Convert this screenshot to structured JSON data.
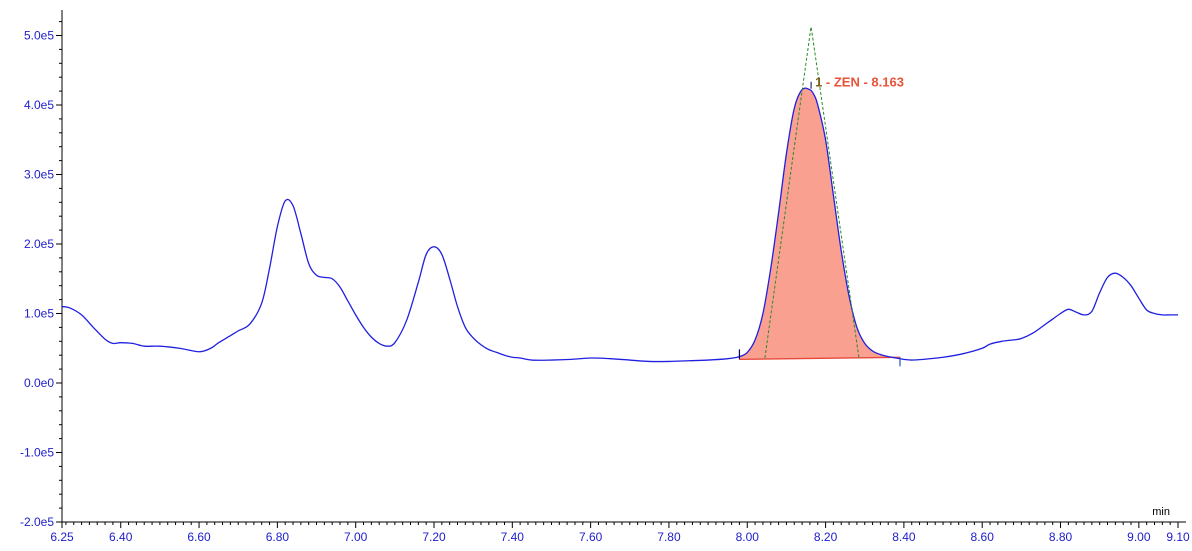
{
  "chart_data": {
    "type": "line",
    "title": "",
    "xlabel": "",
    "x_unit": "min",
    "ylabel": "",
    "xlim": [
      6.25,
      9.1
    ],
    "ylim": [
      -200000,
      520000
    ],
    "x_ticks": [
      6.25,
      6.4,
      6.6,
      6.8,
      7.0,
      7.2,
      7.4,
      7.6,
      7.8,
      8.0,
      8.2,
      8.4,
      8.6,
      8.8,
      9.0,
      9.1
    ],
    "x_tick_labels": [
      "6.25",
      "6.40",
      "6.60",
      "6.80",
      "7.00",
      "7.20",
      "7.40",
      "7.60",
      "7.80",
      "8.00",
      "8.20",
      "8.40",
      "8.60",
      "8.80",
      "9.00",
      "9.10"
    ],
    "y_ticks": [
      -200000,
      -100000,
      0,
      100000,
      200000,
      300000,
      400000,
      500000
    ],
    "y_tick_labels": [
      "-2.0e5",
      "-1.0e5",
      "0.0e0",
      "1.0e5",
      "2.0e5",
      "3.0e5",
      "4.0e5",
      "5.0e5"
    ],
    "grid": false,
    "colors": {
      "trace": "#2020e0",
      "axis_text": "#2020cc",
      "peak_fill": "#f9a090",
      "peak_edge": "#e8483a",
      "tangent": "#2a8a2a",
      "peak_label": "#e8533a",
      "peak_label_prefix": "#7a5a10"
    },
    "series": [
      {
        "x": [
          6.25,
          6.27,
          6.3,
          6.33,
          6.36,
          6.38,
          6.4,
          6.43,
          6.46,
          6.5,
          6.55,
          6.6,
          6.63,
          6.65,
          6.68,
          6.7,
          6.73,
          6.76,
          6.78,
          6.8,
          6.82,
          6.84,
          6.86,
          6.88,
          6.9,
          6.92,
          6.94,
          6.96,
          6.98,
          7.0,
          7.02,
          7.04,
          7.06,
          7.08,
          7.1,
          7.13,
          7.16,
          7.18,
          7.2,
          7.22,
          7.24,
          7.26,
          7.28,
          7.3,
          7.32,
          7.34,
          7.36,
          7.38,
          7.4,
          7.42,
          7.45,
          7.5,
          7.55,
          7.6,
          7.65,
          7.7,
          7.75,
          7.8,
          7.85,
          7.9,
          7.95,
          7.98,
          8.0,
          8.02,
          8.04,
          8.06,
          8.08,
          8.1,
          8.12,
          8.14,
          8.16,
          8.17,
          8.18,
          8.2,
          8.22,
          8.24,
          8.26,
          8.28,
          8.3,
          8.32,
          8.34,
          8.36,
          8.38,
          8.4,
          8.42,
          8.45,
          8.5,
          8.55,
          8.6,
          8.62,
          8.65,
          8.68,
          8.7,
          8.73,
          8.76,
          8.78,
          8.8,
          8.82,
          8.84,
          8.86,
          8.88,
          8.9,
          8.92,
          8.94,
          8.96,
          8.98,
          9.0,
          9.02,
          9.04,
          9.06,
          9.08,
          9.1
        ],
        "y": [
          110000,
          108000,
          98000,
          80000,
          63000,
          57000,
          58000,
          57000,
          53000,
          53000,
          50000,
          45000,
          50000,
          58000,
          68000,
          75000,
          85000,
          115000,
          165000,
          225000,
          262000,
          255000,
          215000,
          172000,
          155000,
          152000,
          150000,
          138000,
          118000,
          98000,
          80000,
          66000,
          57000,
          53000,
          58000,
          90000,
          145000,
          185000,
          196000,
          185000,
          150000,
          110000,
          80000,
          65000,
          55000,
          48000,
          44000,
          40000,
          37000,
          36000,
          33000,
          33000,
          34000,
          36000,
          35000,
          33000,
          31000,
          31000,
          32000,
          33000,
          35000,
          38000,
          44000,
          62000,
          100000,
          165000,
          245000,
          330000,
          395000,
          422000,
          422000,
          415000,
          400000,
          350000,
          270000,
          190000,
          125000,
          80000,
          57000,
          46000,
          41000,
          38000,
          36000,
          34000,
          33000,
          34000,
          37000,
          42000,
          50000,
          56000,
          60000,
          62000,
          64000,
          72000,
          84000,
          92000,
          100000,
          106000,
          102000,
          98000,
          103000,
          130000,
          152000,
          158000,
          152000,
          140000,
          122000,
          105000,
          100000,
          98000,
          98000,
          98000
        ]
      }
    ],
    "peak": {
      "label_prefix": "1",
      "label": " - ZEN - 8.163",
      "apex": [
        8.163,
        422000
      ],
      "start": [
        7.98,
        34000
      ],
      "end": [
        8.39,
        37000
      ],
      "tangent_apex": [
        8.163,
        513000
      ],
      "tangent_left_base": [
        8.045,
        36000
      ],
      "tangent_right_base": [
        8.285,
        37000
      ]
    }
  }
}
